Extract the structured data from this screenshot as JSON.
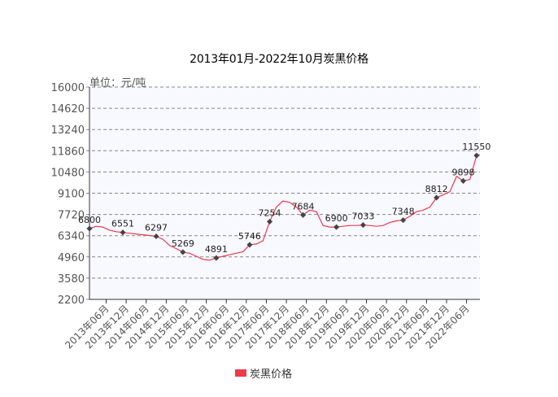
{
  "chart_data": {
    "type": "line",
    "title": "2013年01月-2022年10月炭黑价格",
    "unit_label": "单位：元/吨",
    "ylim": [
      2200,
      16000
    ],
    "yticks": [
      "16000",
      "14620",
      "13240",
      "11860",
      "10480",
      "9100",
      "7720",
      "6340",
      "4960",
      "3580",
      "2200"
    ],
    "xticks": [
      "2013年06月",
      "2013年12月",
      "2014年06月",
      "2014年12月",
      "2015年06月",
      "2015年12月",
      "2016年06月",
      "2016年12月",
      "2017年06月",
      "2017年12月",
      "2018年06月",
      "2018年12月",
      "2019年06月",
      "2019年12月",
      "2020年06月",
      "2020年12月",
      "2021年06月",
      "2021年12月",
      "2022年06月"
    ],
    "grid": true,
    "legend_position": "bottom",
    "series": [
      {
        "name": "炭黑价格",
        "color": "#ee3a4a",
        "x": [
          "2013-01",
          "2013-03",
          "2013-05",
          "2013-07",
          "2013-09",
          "2013-11",
          "2014-01",
          "2014-03",
          "2014-05",
          "2014-07",
          "2014-09",
          "2014-11",
          "2015-01",
          "2015-03",
          "2015-05",
          "2015-07",
          "2015-09",
          "2015-11",
          "2016-01",
          "2016-03",
          "2016-05",
          "2016-07",
          "2016-09",
          "2016-11",
          "2017-01",
          "2017-03",
          "2017-05",
          "2017-07",
          "2017-09",
          "2017-11",
          "2018-01",
          "2018-03",
          "2018-05",
          "2018-07",
          "2018-09",
          "2018-11",
          "2019-01",
          "2019-03",
          "2019-05",
          "2019-07",
          "2019-09",
          "2019-11",
          "2020-01",
          "2020-03",
          "2020-05",
          "2020-07",
          "2020-09",
          "2020-11",
          "2021-01",
          "2021-03",
          "2021-05",
          "2021-07",
          "2021-09",
          "2021-11",
          "2022-01",
          "2022-03",
          "2022-05",
          "2022-07",
          "2022-09",
          "2022-10"
        ],
        "values": [
          6800,
          6950,
          6900,
          6700,
          6600,
          6551,
          6500,
          6450,
          6400,
          6350,
          6297,
          6100,
          5700,
          5500,
          5269,
          5200,
          5000,
          4800,
          4750,
          4891,
          5000,
          5100,
          5200,
          5300,
          5746,
          5800,
          6000,
          7254,
          8200,
          8600,
          8500,
          8200,
          7684,
          8000,
          7900,
          7000,
          6900,
          6900,
          6950,
          7000,
          7000,
          7033,
          7000,
          6950,
          7000,
          7200,
          7300,
          7348,
          7600,
          7900,
          8000,
          8200,
          8812,
          9000,
          9200,
          10200,
          9898,
          10000,
          11550,
          11600
        ]
      }
    ],
    "labels": [
      {
        "x": "2013-01",
        "text": "6800"
      },
      {
        "x": "2013-11",
        "text": "6551"
      },
      {
        "x": "2014-09",
        "text": "6297"
      },
      {
        "x": "2015-05",
        "text": "5269"
      },
      {
        "x": "2016-03",
        "text": "4891"
      },
      {
        "x": "2017-01",
        "text": "5746"
      },
      {
        "x": "2017-07",
        "text": "7254"
      },
      {
        "x": "2018-05",
        "text": "7684"
      },
      {
        "x": "2019-03",
        "text": "6900"
      },
      {
        "x": "2019-11",
        "text": "7033"
      },
      {
        "x": "2020-11",
        "text": "7348"
      },
      {
        "x": "2021-09",
        "text": "8812"
      },
      {
        "x": "2022-05",
        "text": "9898"
      },
      {
        "x": "2022-09",
        "text": "11550"
      }
    ]
  }
}
